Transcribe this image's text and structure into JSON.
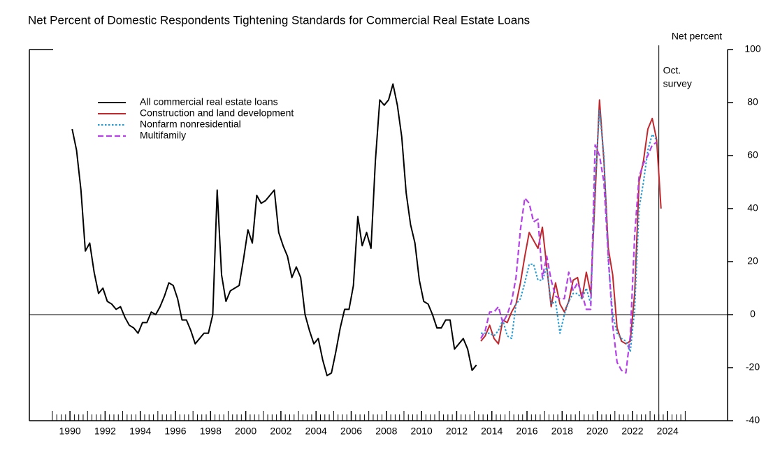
{
  "chart_data": {
    "type": "line",
    "title": "Net Percent of Domestic Respondents Tightening Standards for Commercial Real Estate Loans",
    "y_label": "Net percent",
    "annotation": {
      "lines": [
        "Oct.",
        "survey"
      ],
      "x": 2023.5
    },
    "xlim": [
      1987.69,
      2027.41
    ],
    "ylim": [
      -40,
      100
    ],
    "xticks": [
      1990,
      1992,
      1994,
      1996,
      1998,
      2000,
      2002,
      2004,
      2006,
      2008,
      2010,
      2012,
      2014,
      2016,
      2018,
      2020,
      2022,
      2024
    ],
    "yticks": [
      -40,
      -20,
      0,
      20,
      40,
      60,
      80,
      100
    ],
    "zero_line": true,
    "legend": "upper left",
    "series": [
      {
        "name": "All commercial real estate loans",
        "color": "#000000",
        "dash": "solid",
        "x": [
          1990.125,
          1990.375,
          1990.625,
          1990.875,
          1991.125,
          1991.375,
          1991.625,
          1991.875,
          1992.125,
          1992.375,
          1992.625,
          1992.875,
          1993.125,
          1993.375,
          1993.625,
          1993.875,
          1994.125,
          1994.375,
          1994.625,
          1994.875,
          1995.125,
          1995.375,
          1995.625,
          1995.875,
          1996.125,
          1996.375,
          1996.625,
          1996.875,
          1997.125,
          1997.375,
          1997.625,
          1997.875,
          1998.125,
          1998.375,
          1998.625,
          1998.875,
          1999.125,
          1999.375,
          1999.625,
          1999.875,
          2000.125,
          2000.375,
          2000.625,
          2000.875,
          2001.125,
          2001.375,
          2001.625,
          2001.875,
          2002.125,
          2002.375,
          2002.625,
          2002.875,
          2003.125,
          2003.375,
          2003.625,
          2003.875,
          2004.125,
          2004.375,
          2004.625,
          2004.875,
          2005.125,
          2005.375,
          2005.625,
          2005.875,
          2006.125,
          2006.375,
          2006.625,
          2006.875,
          2007.125,
          2007.375,
          2007.625,
          2007.875,
          2008.125,
          2008.375,
          2008.625,
          2008.875,
          2009.125,
          2009.375,
          2009.625,
          2009.875,
          2010.125,
          2010.375,
          2010.625,
          2010.875,
          2011.125,
          2011.375,
          2011.625,
          2011.875,
          2012.125,
          2012.375,
          2012.625,
          2012.875,
          2013.125
        ],
        "values": [
          70,
          62,
          47,
          24,
          27,
          16,
          8,
          10,
          5,
          4,
          2,
          3,
          -1,
          -4,
          -5,
          -7,
          -3,
          -3,
          1,
          0,
          3,
          7,
          12,
          11,
          6,
          -2,
          -2,
          -6,
          -11,
          -9,
          -7,
          -7,
          0,
          47,
          15,
          5,
          9,
          10,
          11,
          21,
          32,
          27,
          45,
          42,
          43,
          45,
          47,
          31,
          26,
          22,
          14,
          18,
          14,
          0,
          -6,
          -11,
          -9,
          -17,
          -23,
          -22,
          -14,
          -5,
          2,
          2,
          11,
          37,
          26,
          31,
          25,
          58,
          81,
          79,
          81,
          87,
          79,
          67,
          46,
          34,
          27,
          13,
          5,
          4,
          0,
          -5,
          -5,
          -2,
          -2,
          -13,
          -11,
          -9,
          -13,
          -21,
          -19
        ]
      },
      {
        "name": "Construction and land development",
        "color": "#c0282d",
        "dash": "solid",
        "x": [
          2013.375,
          2013.625,
          2013.875,
          2014.125,
          2014.375,
          2014.625,
          2014.875,
          2015.125,
          2015.375,
          2015.625,
          2015.875,
          2016.125,
          2016.375,
          2016.625,
          2016.875,
          2017.125,
          2017.375,
          2017.625,
          2017.875,
          2018.125,
          2018.375,
          2018.625,
          2018.875,
          2019.125,
          2019.375,
          2019.625,
          2019.875,
          2020.125,
          2020.375,
          2020.625,
          2020.875,
          2021.125,
          2021.375,
          2021.625,
          2021.875,
          2022.125,
          2022.375,
          2022.625,
          2022.875,
          2023.125,
          2023.375,
          2023.625
        ],
        "values": [
          -10,
          -8,
          -4,
          -9,
          -11,
          -2,
          -3,
          1,
          4,
          12,
          22,
          31,
          28,
          25,
          33,
          18,
          3,
          12,
          4,
          1,
          5,
          13,
          14,
          6,
          16,
          8,
          45,
          81,
          58,
          25,
          15,
          -5,
          -10,
          -11,
          -10,
          8,
          50,
          58,
          70,
          74,
          66,
          40
        ]
      },
      {
        "name": "Nonfarm nonresidential",
        "color": "#1a9ad6",
        "dash": "dotted",
        "x": [
          2013.375,
          2013.625,
          2013.875,
          2014.125,
          2014.375,
          2014.625,
          2014.875,
          2015.125,
          2015.375,
          2015.625,
          2015.875,
          2016.125,
          2016.375,
          2016.625,
          2016.875,
          2017.125,
          2017.375,
          2017.625,
          2017.875,
          2018.125,
          2018.375,
          2018.625,
          2018.875,
          2019.125,
          2019.375,
          2019.625,
          2019.875,
          2020.125,
          2020.375,
          2020.625,
          2020.875,
          2021.125,
          2021.375,
          2021.625,
          2021.875,
          2022.125,
          2022.375,
          2022.625,
          2022.875,
          2023.125,
          2023.375
        ],
        "values": [
          -7,
          -7,
          -7,
          -8,
          -6,
          -2,
          -8,
          -9,
          4,
          6,
          12,
          19,
          19,
          13,
          13,
          18,
          4,
          5,
          -7,
          0,
          5,
          8,
          8,
          6,
          10,
          4,
          50,
          77,
          60,
          20,
          0,
          -7,
          -9,
          -10,
          -14,
          2,
          40,
          50,
          62,
          68,
          66
        ]
      },
      {
        "name": "Multifamily",
        "color": "#b540e8",
        "dash": "dashed",
        "x": [
          2013.375,
          2013.625,
          2013.875,
          2014.125,
          2014.375,
          2014.625,
          2014.875,
          2015.125,
          2015.375,
          2015.625,
          2015.875,
          2016.125,
          2016.375,
          2016.625,
          2016.875,
          2017.125,
          2017.375,
          2017.625,
          2017.875,
          2018.125,
          2018.375,
          2018.625,
          2018.875,
          2019.125,
          2019.375,
          2019.625,
          2019.875,
          2020.125,
          2020.375,
          2020.625,
          2020.875,
          2021.125,
          2021.375,
          2021.625,
          2021.875,
          2022.125,
          2022.375,
          2022.625,
          2022.875,
          2023.125,
          2023.375
        ],
        "values": [
          -9,
          -6,
          1,
          1,
          3,
          -3,
          0,
          5,
          14,
          32,
          44,
          42,
          35,
          36,
          14,
          22,
          13,
          7,
          6,
          6,
          16,
          9,
          12,
          8,
          2,
          2,
          64,
          60,
          50,
          22,
          -4,
          -18,
          -21,
          -22,
          -8,
          30,
          52,
          57,
          60,
          64,
          65
        ]
      }
    ]
  }
}
